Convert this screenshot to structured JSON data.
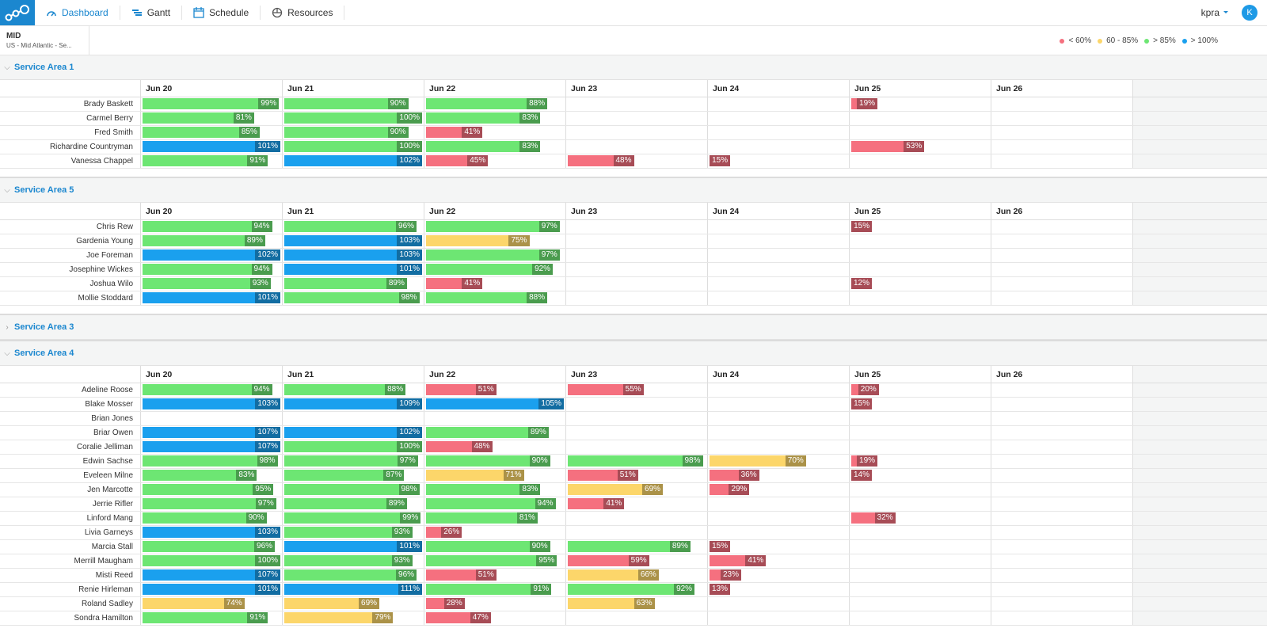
{
  "nav": {
    "items": [
      "Dashboard",
      "Gantt",
      "Schedule",
      "Resources"
    ],
    "user": "kpra",
    "avatar": "K"
  },
  "region": {
    "code": "MID",
    "name": "US - Mid Atlantic - Se..."
  },
  "legend": [
    {
      "label": "< 60%",
      "color": "#f5707f"
    },
    {
      "label": "60 - 85%",
      "color": "#fcd66a"
    },
    {
      "label": "> 85%",
      "color": "#6de673"
    },
    {
      "label": "> 100%",
      "color": "#1aa0ee"
    }
  ],
  "days": [
    "Jun 20",
    "Jun 21",
    "Jun 22",
    "Jun 23",
    "Jun 24",
    "Jun 25",
    "Jun 26"
  ],
  "groups": [
    {
      "title": "Service Area 1",
      "expanded": true,
      "rows": [
        {
          "name": "Brady Baskett",
          "values": [
            99,
            90,
            88,
            null,
            null,
            19,
            null
          ],
          "value_labels": [
            "99%",
            "90%",
            "88%",
            null,
            null,
            "19%",
            null
          ],
          "colors": [
            "#6de673",
            "#6de673",
            "#6de673",
            null,
            null,
            "#f5707f",
            null
          ]
        },
        {
          "name": "Carmel Berry",
          "values": [
            81,
            100,
            83,
            null,
            null,
            null,
            null
          ],
          "value_labels": [
            "81%",
            "100%",
            "83%",
            null,
            null,
            null,
            null
          ],
          "colors": [
            "#6de673",
            "#6de673",
            "#6de673",
            null,
            null,
            null,
            null
          ]
        },
        {
          "name": "Fred Smith",
          "values": [
            85,
            90,
            41,
            null,
            null,
            null,
            null
          ],
          "value_labels": [
            "85%",
            "90%",
            "41%",
            null,
            null,
            null,
            null
          ],
          "colors": [
            "#6de673",
            "#6de673",
            "#f5707f",
            null,
            null,
            null,
            null
          ]
        },
        {
          "name": "Richardine Countryman",
          "values": [
            101,
            100,
            83,
            null,
            null,
            53,
            null
          ],
          "value_labels": [
            "101%",
            "100%",
            "83%",
            null,
            null,
            "53%",
            null
          ],
          "colors": [
            "#1aa0ee",
            "#6de673",
            "#6de673",
            null,
            null,
            "#f5707f",
            null
          ]
        },
        {
          "name": "Vanessa Chappel",
          "values": [
            91,
            102,
            45,
            48,
            15,
            null,
            null
          ],
          "value_labels": [
            "91%",
            "102%",
            "45%",
            "48%",
            "15%",
            null,
            null
          ],
          "colors": [
            "#6de673",
            "#1aa0ee",
            "#f5707f",
            "#f5707f",
            "#f5707f",
            null,
            null
          ]
        }
      ]
    },
    {
      "title": "Service Area 5",
      "expanded": true,
      "rows": [
        {
          "name": "Chris Rew",
          "values": [
            94,
            96,
            97,
            null,
            null,
            15,
            null
          ],
          "value_labels": [
            "94%",
            "96%",
            "97%",
            null,
            null,
            "15%",
            null
          ],
          "colors": [
            "#6de673",
            "#6de673",
            "#6de673",
            null,
            null,
            "#f5707f",
            null
          ]
        },
        {
          "name": "Gardenia Young",
          "values": [
            89,
            103,
            75,
            null,
            null,
            null,
            null
          ],
          "value_labels": [
            "89%",
            "103%",
            "75%",
            null,
            null,
            null,
            null
          ],
          "colors": [
            "#6de673",
            "#1aa0ee",
            "#fcd66a",
            null,
            null,
            null,
            null
          ]
        },
        {
          "name": "Joe Foreman",
          "values": [
            102,
            103,
            97,
            null,
            null,
            null,
            null
          ],
          "value_labels": [
            "102%",
            "103%",
            "97%",
            null,
            null,
            null,
            null
          ],
          "colors": [
            "#1aa0ee",
            "#1aa0ee",
            "#6de673",
            null,
            null,
            null,
            null
          ]
        },
        {
          "name": "Josephine Wickes",
          "values": [
            94,
            101,
            92,
            null,
            null,
            null,
            null
          ],
          "value_labels": [
            "94%",
            "101%",
            "92%",
            null,
            null,
            null,
            null
          ],
          "colors": [
            "#6de673",
            "#1aa0ee",
            "#6de673",
            null,
            null,
            null,
            null
          ]
        },
        {
          "name": "Joshua Wilo",
          "values": [
            93,
            89,
            41,
            null,
            null,
            12,
            null
          ],
          "value_labels": [
            "93%",
            "89%",
            "41%",
            null,
            null,
            "12%",
            null
          ],
          "colors": [
            "#6de673",
            "#6de673",
            "#f5707f",
            null,
            null,
            "#f5707f",
            null
          ]
        },
        {
          "name": "Mollie Stoddard",
          "values": [
            101,
            98,
            88,
            null,
            null,
            null,
            null
          ],
          "value_labels": [
            "101%",
            "98%",
            "88%",
            null,
            null,
            null,
            null
          ],
          "colors": [
            "#1aa0ee",
            "#6de673",
            "#6de673",
            null,
            null,
            null,
            null
          ]
        }
      ]
    },
    {
      "title": "Service Area 3",
      "expanded": false,
      "rows": []
    },
    {
      "title": "Service Area 4",
      "expanded": true,
      "rows": [
        {
          "name": "Adeline Roose",
          "values": [
            94,
            88,
            51,
            55,
            null,
            20,
            null
          ],
          "value_labels": [
            "94%",
            "88%",
            "51%",
            "55%",
            null,
            "20%",
            null
          ],
          "colors": [
            "#6de673",
            "#6de673",
            "#f5707f",
            "#f5707f",
            null,
            "#f5707f",
            null
          ]
        },
        {
          "name": "Blake Mosser",
          "values": [
            103,
            109,
            105,
            null,
            null,
            15,
            null
          ],
          "value_labels": [
            "103%",
            "109%",
            "105%",
            null,
            null,
            "15%",
            null
          ],
          "colors": [
            "#1aa0ee",
            "#1aa0ee",
            "#1aa0ee",
            null,
            null,
            "#f5707f",
            null
          ]
        },
        {
          "name": "Brian Jones",
          "values": [
            null,
            null,
            null,
            null,
            null,
            null,
            null
          ],
          "value_labels": [
            null,
            null,
            null,
            null,
            null,
            null,
            null
          ],
          "colors": [
            null,
            null,
            null,
            null,
            null,
            null,
            null
          ]
        },
        {
          "name": "Briar Owen",
          "values": [
            107,
            102,
            89,
            null,
            null,
            null,
            null
          ],
          "value_labels": [
            "107%",
            "102%",
            "89%",
            null,
            null,
            null,
            null
          ],
          "colors": [
            "#1aa0ee",
            "#1aa0ee",
            "#6de673",
            null,
            null,
            null,
            null
          ]
        },
        {
          "name": "Coralie Jelliman",
          "values": [
            107,
            100,
            48,
            null,
            null,
            null,
            null
          ],
          "value_labels": [
            "107%",
            "100%",
            "48%",
            null,
            null,
            null,
            null
          ],
          "colors": [
            "#1aa0ee",
            "#6de673",
            "#f5707f",
            null,
            null,
            null,
            null
          ]
        },
        {
          "name": "Edwin Sachse",
          "values": [
            98,
            97,
            90,
            98,
            70,
            19,
            null
          ],
          "value_labels": [
            "98%",
            "97%",
            "90%",
            "98%",
            "70%",
            "19%",
            null
          ],
          "colors": [
            "#6de673",
            "#6de673",
            "#6de673",
            "#6de673",
            "#fcd66a",
            "#f5707f",
            null
          ]
        },
        {
          "name": "Eveleen Milne",
          "values": [
            83,
            87,
            71,
            51,
            36,
            14,
            null
          ],
          "value_labels": [
            "83%",
            "87%",
            "71%",
            "51%",
            "36%",
            "14%",
            null
          ],
          "colors": [
            "#6de673",
            "#6de673",
            "#fcd66a",
            "#f5707f",
            "#f5707f",
            "#f5707f",
            null
          ]
        },
        {
          "name": "Jen Marcotte",
          "values": [
            95,
            98,
            83,
            69,
            29,
            null,
            null
          ],
          "value_labels": [
            "95%",
            "98%",
            "83%",
            "69%",
            "29%",
            null,
            null
          ],
          "colors": [
            "#6de673",
            "#6de673",
            "#6de673",
            "#fcd66a",
            "#f5707f",
            null,
            null
          ]
        },
        {
          "name": "Jerrie Rifler",
          "values": [
            97,
            89,
            94,
            41,
            null,
            null,
            null
          ],
          "value_labels": [
            "97%",
            "89%",
            "94%",
            "41%",
            null,
            null,
            null
          ],
          "colors": [
            "#6de673",
            "#6de673",
            "#6de673",
            "#f5707f",
            null,
            null,
            null
          ]
        },
        {
          "name": "Linford Mang",
          "values": [
            90,
            99,
            81,
            null,
            null,
            32,
            null
          ],
          "value_labels": [
            "90%",
            "99%",
            "81%",
            null,
            null,
            "32%",
            null
          ],
          "colors": [
            "#6de673",
            "#6de673",
            "#6de673",
            null,
            null,
            "#f5707f",
            null
          ]
        },
        {
          "name": "Livia Garneys",
          "values": [
            103,
            93,
            26,
            null,
            null,
            null,
            null
          ],
          "value_labels": [
            "103%",
            "93%",
            "26%",
            null,
            null,
            null,
            null
          ],
          "colors": [
            "#1aa0ee",
            "#6de673",
            "#f5707f",
            null,
            null,
            null,
            null
          ]
        },
        {
          "name": "Marcia Stall",
          "values": [
            96,
            101,
            90,
            89,
            15,
            null,
            null
          ],
          "value_labels": [
            "96%",
            "101%",
            "90%",
            "89%",
            "15%",
            null,
            null
          ],
          "colors": [
            "#6de673",
            "#1aa0ee",
            "#6de673",
            "#6de673",
            "#f5707f",
            null,
            null
          ]
        },
        {
          "name": "Merrill Maugham",
          "values": [
            100,
            93,
            95,
            59,
            41,
            null,
            null
          ],
          "value_labels": [
            "100%",
            "93%",
            "95%",
            "59%",
            "41%",
            null,
            null
          ],
          "colors": [
            "#6de673",
            "#6de673",
            "#6de673",
            "#f5707f",
            "#f5707f",
            null,
            null
          ]
        },
        {
          "name": "Misti Reed",
          "values": [
            107,
            96,
            51,
            66,
            23,
            null,
            null
          ],
          "value_labels": [
            "107%",
            "96%",
            "51%",
            "66%",
            "23%",
            null,
            null
          ],
          "colors": [
            "#1aa0ee",
            "#6de673",
            "#f5707f",
            "#fcd66a",
            "#f5707f",
            null,
            null
          ]
        },
        {
          "name": "Renie Hirleman",
          "values": [
            101,
            111,
            91,
            92,
            13,
            null,
            null
          ],
          "value_labels": [
            "101%",
            "111%",
            "91%",
            "92%",
            "13%",
            null,
            null
          ],
          "colors": [
            "#1aa0ee",
            "#1aa0ee",
            "#6de673",
            "#6de673",
            "#f5707f",
            null,
            null
          ]
        },
        {
          "name": "Roland Sadley",
          "values": [
            74,
            69,
            28,
            63,
            null,
            null,
            null
          ],
          "value_labels": [
            "74%",
            "69%",
            "28%",
            "63%",
            null,
            null,
            null
          ],
          "colors": [
            "#fcd66a",
            "#fcd66a",
            "#f5707f",
            "#fcd66a",
            null,
            null,
            null
          ]
        },
        {
          "name": "Sondra Hamilton",
          "values": [
            91,
            79,
            47,
            null,
            null,
            null,
            null
          ],
          "value_labels": [
            "91%",
            "79%",
            "47%",
            null,
            null,
            null,
            null
          ],
          "colors": [
            "#6de673",
            "#fcd66a",
            "#f5707f",
            null,
            null,
            null,
            null
          ]
        }
      ]
    }
  ]
}
